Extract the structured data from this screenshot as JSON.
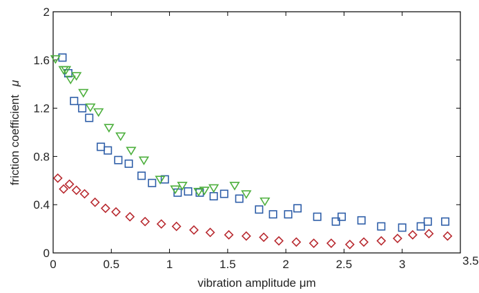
{
  "chart_data": {
    "type": "scatter",
    "xlabel": "vibration amplitude μm",
    "ylabel": "friction coefficient",
    "ylabel_symbol": "μ",
    "xlim": [
      0,
      3.5
    ],
    "ylim": [
      0,
      2
    ],
    "x_ticks": [
      "0",
      "0.5",
      "1",
      "1.5",
      "2",
      "2.5",
      "3",
      "3.5"
    ],
    "y_ticks": [
      "0",
      "0.4",
      "0.8",
      "1.2",
      "1.6",
      "2"
    ],
    "grid": false,
    "series": [
      {
        "marker": "square",
        "color": "#2e5ea8",
        "points": [
          [
            0.08,
            1.62
          ],
          [
            0.13,
            1.49
          ],
          [
            0.18,
            1.26
          ],
          [
            0.25,
            1.2
          ],
          [
            0.31,
            1.12
          ],
          [
            0.41,
            0.88
          ],
          [
            0.47,
            0.85
          ],
          [
            0.56,
            0.77
          ],
          [
            0.65,
            0.74
          ],
          [
            0.76,
            0.64
          ],
          [
            0.85,
            0.58
          ],
          [
            0.96,
            0.61
          ],
          [
            1.07,
            0.5
          ],
          [
            1.16,
            0.51
          ],
          [
            1.26,
            0.5
          ],
          [
            1.38,
            0.47
          ],
          [
            1.47,
            0.49
          ],
          [
            1.6,
            0.45
          ],
          [
            1.77,
            0.36
          ],
          [
            1.89,
            0.32
          ],
          [
            2.02,
            0.32
          ],
          [
            2.1,
            0.37
          ],
          [
            2.27,
            0.3
          ],
          [
            2.43,
            0.26
          ],
          [
            2.48,
            0.3
          ],
          [
            2.65,
            0.27
          ],
          [
            2.82,
            0.22
          ],
          [
            3.0,
            0.21
          ],
          [
            3.16,
            0.22
          ],
          [
            3.22,
            0.26
          ],
          [
            3.37,
            0.26
          ]
        ]
      },
      {
        "marker": "triangle-down",
        "color": "#4caf3c",
        "points": [
          [
            0.02,
            1.61
          ],
          [
            0.09,
            1.52
          ],
          [
            0.11,
            1.52
          ],
          [
            0.15,
            1.44
          ],
          [
            0.2,
            1.47
          ],
          [
            0.26,
            1.33
          ],
          [
            0.32,
            1.21
          ],
          [
            0.39,
            1.17
          ],
          [
            0.48,
            1.04
          ],
          [
            0.58,
            0.97
          ],
          [
            0.67,
            0.85
          ],
          [
            0.78,
            0.77
          ],
          [
            0.92,
            0.61
          ],
          [
            1.05,
            0.53
          ],
          [
            1.11,
            0.56
          ],
          [
            1.25,
            0.51
          ],
          [
            1.3,
            0.52
          ],
          [
            1.38,
            0.54
          ],
          [
            1.56,
            0.56
          ],
          [
            1.66,
            0.49
          ],
          [
            1.82,
            0.43
          ]
        ]
      },
      {
        "marker": "diamond",
        "color": "#b8292f",
        "points": [
          [
            0.04,
            0.62
          ],
          [
            0.09,
            0.53
          ],
          [
            0.14,
            0.57
          ],
          [
            0.2,
            0.52
          ],
          [
            0.27,
            0.49
          ],
          [
            0.36,
            0.42
          ],
          [
            0.45,
            0.37
          ],
          [
            0.54,
            0.34
          ],
          [
            0.66,
            0.3
          ],
          [
            0.79,
            0.26
          ],
          [
            0.93,
            0.24
          ],
          [
            1.06,
            0.22
          ],
          [
            1.21,
            0.19
          ],
          [
            1.35,
            0.17
          ],
          [
            1.51,
            0.15
          ],
          [
            1.66,
            0.14
          ],
          [
            1.81,
            0.13
          ],
          [
            1.94,
            0.1
          ],
          [
            2.09,
            0.09
          ],
          [
            2.24,
            0.08
          ],
          [
            2.39,
            0.08
          ],
          [
            2.55,
            0.07
          ],
          [
            2.67,
            0.09
          ],
          [
            2.82,
            0.1
          ],
          [
            2.96,
            0.12
          ],
          [
            3.09,
            0.15
          ],
          [
            3.23,
            0.16
          ],
          [
            3.39,
            0.14
          ]
        ]
      }
    ]
  }
}
